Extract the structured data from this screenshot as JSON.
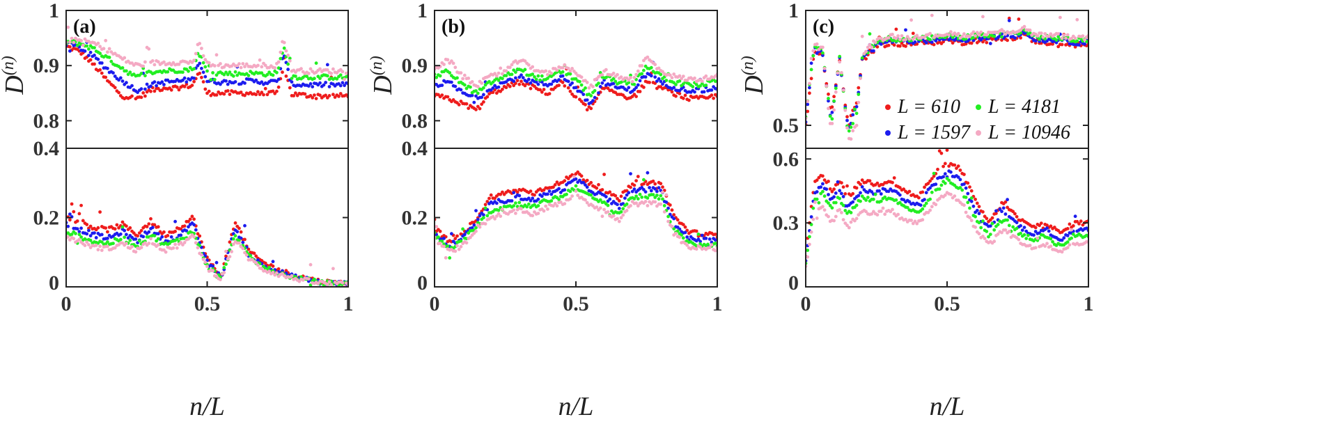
{
  "figure": {
    "xlabel": "n/L",
    "ylabel": "D(n)"
  },
  "chart_data": [
    {
      "type": "scatter",
      "panel": "(a)",
      "xlabel": "n/L",
      "ylabel": "D(n)",
      "xlim": [
        0,
        1
      ],
      "ylim_top": [
        0.75,
        1
      ],
      "ylim_bottom": [
        0,
        0.4
      ],
      "xticks": [
        "0",
        "0.5",
        "1"
      ],
      "yticks_top": [
        "0.8",
        "0.9",
        "1"
      ],
      "yticks_bottom": [
        "0",
        "0.2",
        "0.4"
      ],
      "upper_band": {
        "x": [
          0,
          0.05,
          0.1,
          0.15,
          0.2,
          0.25,
          0.3,
          0.35,
          0.4,
          0.45,
          0.47,
          0.5,
          0.55,
          0.6,
          0.65,
          0.7,
          0.75,
          0.77,
          0.8,
          0.85,
          0.9,
          0.95,
          1.0
        ],
        "series": [
          {
            "name": "L = 610",
            "values": [
              0.935,
              0.925,
              0.9,
              0.87,
              0.845,
              0.84,
              0.855,
              0.86,
              0.86,
              0.865,
              0.89,
              0.85,
              0.85,
              0.85,
              0.85,
              0.848,
              0.85,
              0.9,
              0.848,
              0.846,
              0.845,
              0.845,
              0.845
            ]
          },
          {
            "name": "L = 1597",
            "values": [
              0.94,
              0.932,
              0.915,
              0.892,
              0.872,
              0.855,
              0.865,
              0.87,
              0.872,
              0.875,
              0.91,
              0.872,
              0.87,
              0.87,
              0.872,
              0.87,
              0.87,
              0.92,
              0.866,
              0.865,
              0.865,
              0.865,
              0.865
            ]
          },
          {
            "name": "L = 4181",
            "values": [
              0.943,
              0.94,
              0.93,
              0.912,
              0.895,
              0.878,
              0.888,
              0.89,
              0.892,
              0.893,
              0.925,
              0.888,
              0.886,
              0.885,
              0.886,
              0.885,
              0.886,
              0.935,
              0.88,
              0.879,
              0.879,
              0.879,
              0.879
            ]
          },
          {
            "name": "L = 10946",
            "values": [
              0.945,
              0.946,
              0.94,
              0.928,
              0.912,
              0.9,
              0.905,
              0.905,
              0.906,
              0.906,
              0.94,
              0.903,
              0.9,
              0.9,
              0.9,
              0.9,
              0.9,
              0.95,
              0.892,
              0.89,
              0.89,
              0.89,
              0.89
            ]
          }
        ]
      },
      "lower_band": {
        "x": [
          0,
          0.05,
          0.1,
          0.15,
          0.2,
          0.25,
          0.3,
          0.35,
          0.4,
          0.45,
          0.5,
          0.55,
          0.6,
          0.65,
          0.7,
          0.75,
          0.8,
          0.85,
          0.9,
          0.95,
          1.0
        ],
        "series": [
          {
            "name": "L = 610",
            "values": [
              0.2,
              0.19,
              0.17,
              0.165,
              0.18,
              0.15,
              0.19,
              0.15,
              0.17,
              0.2,
              0.08,
              0.03,
              0.19,
              0.1,
              0.07,
              0.05,
              0.035,
              0.025,
              0.015,
              0.012,
              0.01
            ]
          },
          {
            "name": "L = 1597",
            "values": [
              0.18,
              0.165,
              0.15,
              0.14,
              0.16,
              0.13,
              0.17,
              0.13,
              0.15,
              0.18,
              0.07,
              0.028,
              0.17,
              0.09,
              0.06,
              0.045,
              0.03,
              0.022,
              0.013,
              0.01,
              0.009
            ]
          },
          {
            "name": "L = 4181",
            "values": [
              0.16,
              0.145,
              0.13,
              0.125,
              0.14,
              0.12,
              0.15,
              0.12,
              0.135,
              0.16,
              0.06,
              0.026,
              0.15,
              0.085,
              0.055,
              0.04,
              0.028,
              0.02,
              0.012,
              0.009,
              0.008
            ]
          },
          {
            "name": "L = 10946",
            "values": [
              0.145,
              0.13,
              0.115,
              0.11,
              0.125,
              0.105,
              0.135,
              0.105,
              0.12,
              0.145,
              0.055,
              0.024,
              0.135,
              0.08,
              0.05,
              0.037,
              0.026,
              0.018,
              0.011,
              0.008,
              0.007
            ]
          }
        ]
      }
    },
    {
      "type": "scatter",
      "panel": "(b)",
      "xlabel": "n/L",
      "ylabel": "D(n)",
      "xlim": [
        0,
        1
      ],
      "ylim_top": [
        0.75,
        1
      ],
      "ylim_bottom": [
        0,
        0.4
      ],
      "xticks": [
        "0",
        "0.5",
        "1"
      ],
      "yticks_top": [
        "0.8",
        "0.9",
        "1"
      ],
      "yticks_bottom": [
        "0",
        "0.2",
        "0.4"
      ],
      "upper_band": {
        "x": [
          0,
          0.05,
          0.1,
          0.15,
          0.2,
          0.25,
          0.3,
          0.35,
          0.4,
          0.45,
          0.5,
          0.55,
          0.6,
          0.65,
          0.7,
          0.75,
          0.8,
          0.85,
          0.9,
          0.95,
          1.0
        ],
        "series": [
          {
            "name": "L = 610",
            "values": [
              0.845,
              0.84,
              0.83,
              0.82,
              0.85,
              0.86,
              0.87,
              0.86,
              0.85,
              0.87,
              0.84,
              0.82,
              0.86,
              0.85,
              0.84,
              0.87,
              0.86,
              0.85,
              0.84,
              0.84,
              0.845
            ]
          },
          {
            "name": "L = 1597",
            "values": [
              0.865,
              0.87,
              0.85,
              0.84,
              0.86,
              0.87,
              0.88,
              0.87,
              0.865,
              0.88,
              0.86,
              0.83,
              0.87,
              0.86,
              0.855,
              0.885,
              0.87,
              0.86,
              0.855,
              0.855,
              0.86
            ]
          },
          {
            "name": "L = 4181",
            "values": [
              0.88,
              0.89,
              0.865,
              0.85,
              0.87,
              0.88,
              0.895,
              0.88,
              0.875,
              0.89,
              0.875,
              0.845,
              0.88,
              0.87,
              0.865,
              0.9,
              0.88,
              0.87,
              0.865,
              0.865,
              0.875
            ]
          },
          {
            "name": "L = 10946",
            "values": [
              0.895,
              0.91,
              0.88,
              0.865,
              0.88,
              0.89,
              0.91,
              0.895,
              0.885,
              0.9,
              0.89,
              0.86,
              0.89,
              0.88,
              0.875,
              0.915,
              0.89,
              0.88,
              0.875,
              0.875,
              0.885
            ]
          }
        ]
      },
      "lower_band": {
        "x": [
          0,
          0.05,
          0.1,
          0.15,
          0.2,
          0.25,
          0.3,
          0.35,
          0.4,
          0.45,
          0.5,
          0.55,
          0.6,
          0.65,
          0.7,
          0.75,
          0.8,
          0.85,
          0.9,
          0.95,
          1.0
        ],
        "series": [
          {
            "name": "L = 610",
            "values": [
              0.17,
              0.13,
              0.15,
              0.2,
              0.26,
              0.27,
              0.28,
              0.27,
              0.29,
              0.3,
              0.33,
              0.3,
              0.28,
              0.25,
              0.3,
              0.3,
              0.3,
              0.2,
              0.16,
              0.15,
              0.15
            ]
          },
          {
            "name": "L = 1597",
            "values": [
              0.16,
              0.12,
              0.14,
              0.19,
              0.24,
              0.25,
              0.26,
              0.25,
              0.27,
              0.28,
              0.31,
              0.28,
              0.26,
              0.23,
              0.28,
              0.28,
              0.28,
              0.18,
              0.14,
              0.135,
              0.135
            ]
          },
          {
            "name": "L = 4181",
            "values": [
              0.15,
              0.11,
              0.13,
              0.18,
              0.22,
              0.23,
              0.24,
              0.23,
              0.25,
              0.26,
              0.29,
              0.26,
              0.24,
              0.21,
              0.26,
              0.26,
              0.26,
              0.16,
              0.125,
              0.12,
              0.12
            ]
          },
          {
            "name": "L = 10946",
            "values": [
              0.14,
              0.1,
              0.12,
              0.17,
              0.2,
              0.21,
              0.22,
              0.21,
              0.23,
              0.24,
              0.27,
              0.24,
              0.22,
              0.19,
              0.24,
              0.24,
              0.24,
              0.15,
              0.115,
              0.11,
              0.11
            ]
          }
        ]
      }
    },
    {
      "type": "scatter",
      "panel": "(c)",
      "xlabel": "n/L",
      "ylabel": "D(n)",
      "xlim": [
        0,
        1
      ],
      "ylim_top": [
        0.4,
        1
      ],
      "ylim_bottom": [
        0,
        0.65
      ],
      "xticks": [
        "0",
        "0.5",
        "1"
      ],
      "yticks_top": [
        "0.5",
        "1"
      ],
      "yticks_bottom": [
        "0",
        "0.3",
        "0.6"
      ],
      "legend": {
        "position": "inside lower-right of upper band",
        "entries": [
          "L = 610",
          "L = 4181",
          "L = 1597",
          "L = 10946"
        ]
      },
      "upper_band": {
        "x": [
          0,
          0.03,
          0.06,
          0.09,
          0.12,
          0.15,
          0.18,
          0.2,
          0.25,
          0.3,
          0.35,
          0.4,
          0.45,
          0.5,
          0.55,
          0.6,
          0.65,
          0.7,
          0.75,
          0.77,
          0.8,
          0.85,
          0.9,
          0.95,
          1.0
        ],
        "series": [
          {
            "name": "L = 610",
            "values": [
              0.5,
              0.82,
              0.8,
              0.55,
              0.78,
              0.5,
              0.6,
              0.78,
              0.84,
              0.86,
              0.85,
              0.86,
              0.86,
              0.87,
              0.86,
              0.87,
              0.87,
              0.88,
              0.88,
              0.9,
              0.87,
              0.86,
              0.86,
              0.85,
              0.85
            ]
          },
          {
            "name": "L = 1597",
            "values": [
              0.52,
              0.83,
              0.81,
              0.52,
              0.79,
              0.48,
              0.58,
              0.79,
              0.85,
              0.87,
              0.86,
              0.87,
              0.87,
              0.88,
              0.87,
              0.88,
              0.88,
              0.89,
              0.89,
              0.91,
              0.88,
              0.87,
              0.87,
              0.86,
              0.86
            ]
          },
          {
            "name": "L = 4181",
            "values": [
              0.53,
              0.84,
              0.82,
              0.5,
              0.8,
              0.46,
              0.55,
              0.8,
              0.86,
              0.88,
              0.87,
              0.88,
              0.88,
              0.89,
              0.88,
              0.89,
              0.89,
              0.9,
              0.9,
              0.92,
              0.89,
              0.88,
              0.88,
              0.87,
              0.87
            ]
          },
          {
            "name": "L = 10946",
            "values": [
              0.54,
              0.85,
              0.83,
              0.46,
              0.81,
              0.44,
              0.5,
              0.81,
              0.87,
              0.89,
              0.88,
              0.89,
              0.89,
              0.9,
              0.89,
              0.9,
              0.9,
              0.91,
              0.91,
              0.93,
              0.9,
              0.89,
              0.89,
              0.88,
              0.88
            ]
          }
        ]
      },
      "lower_band": {
        "x": [
          0,
          0.03,
          0.06,
          0.09,
          0.12,
          0.15,
          0.2,
          0.25,
          0.3,
          0.35,
          0.4,
          0.45,
          0.5,
          0.55,
          0.6,
          0.65,
          0.7,
          0.75,
          0.8,
          0.85,
          0.9,
          0.95,
          1.0
        ],
        "series": [
          {
            "name": "L = 610",
            "values": [
              0.15,
              0.48,
              0.52,
              0.45,
              0.5,
              0.42,
              0.5,
              0.48,
              0.5,
              0.45,
              0.42,
              0.52,
              0.58,
              0.55,
              0.4,
              0.3,
              0.4,
              0.32,
              0.28,
              0.3,
              0.25,
              0.3,
              0.3
            ]
          },
          {
            "name": "L = 1597",
            "values": [
              0.13,
              0.44,
              0.48,
              0.41,
              0.46,
              0.38,
              0.46,
              0.44,
              0.46,
              0.41,
              0.38,
              0.48,
              0.54,
              0.5,
              0.36,
              0.27,
              0.36,
              0.29,
              0.25,
              0.27,
              0.22,
              0.27,
              0.27
            ]
          },
          {
            "name": "L = 4181",
            "values": [
              0.11,
              0.4,
              0.44,
              0.37,
              0.42,
              0.34,
              0.42,
              0.4,
              0.42,
              0.37,
              0.34,
              0.44,
              0.5,
              0.46,
              0.32,
              0.24,
              0.32,
              0.26,
              0.22,
              0.24,
              0.19,
              0.24,
              0.24
            ]
          },
          {
            "name": "L = 10946",
            "values": [
              0.09,
              0.35,
              0.38,
              0.3,
              0.36,
              0.28,
              0.36,
              0.34,
              0.36,
              0.31,
              0.3,
              0.38,
              0.44,
              0.4,
              0.27,
              0.2,
              0.27,
              0.22,
              0.18,
              0.2,
              0.16,
              0.2,
              0.2
            ]
          }
        ]
      }
    }
  ],
  "colors": {
    "L = 610": "#ee1c1c",
    "L = 1597": "#1c1cee",
    "L = 4181": "#22ee22",
    "L = 10946": "#f4a9c3"
  }
}
